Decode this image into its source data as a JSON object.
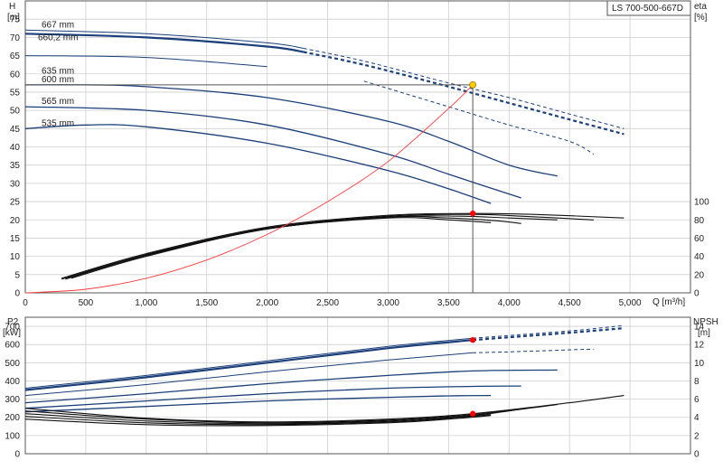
{
  "chart_data": [
    {
      "type": "line",
      "title": "LS 700-500-667D",
      "xlabel": "Q [m³/h]",
      "ylabel_left": "H",
      "ylabel_left_unit": "[m]",
      "ylabel_right": "eta",
      "ylabel_right_unit": "[%]",
      "xlim": [
        0,
        5500
      ],
      "ylim_left": [
        0,
        80
      ],
      "ylim_right": [
        0,
        100
      ],
      "grid": true,
      "x_ticks": [
        0,
        500,
        1000,
        1500,
        2000,
        2500,
        3000,
        3500,
        4000,
        4500,
        5000
      ],
      "x_tick_labels": [
        "0",
        "500",
        "1,000",
        "1,500",
        "2,000",
        "2,500",
        "3,000",
        "3,500",
        "4,000",
        "4,500",
        "5,000"
      ],
      "y_left_ticks": [
        0,
        5,
        10,
        15,
        20,
        25,
        30,
        35,
        40,
        45,
        50,
        55,
        60,
        65,
        70,
        75
      ],
      "y_right_ticks": [
        0,
        20,
        40,
        60,
        80,
        100
      ],
      "head_curves": [
        {
          "name": "667 mm",
          "label": true,
          "style": "solid-dashed",
          "x": [
            0,
            1000,
            2000,
            2300,
            2800,
            3500,
            4000,
            4500,
            4950
          ],
          "y": [
            72,
            71,
            68.5,
            67,
            63.5,
            57.5,
            53.5,
            49,
            45
          ]
        },
        {
          "name": "660,2 mm",
          "label": true,
          "style": "solid-dashed-bold",
          "x": [
            0,
            1000,
            2000,
            2300,
            2800,
            3500,
            4000,
            4500,
            4950
          ],
          "y": [
            71,
            70,
            67.5,
            66,
            62.5,
            56.5,
            52,
            47.5,
            43.5
          ]
        },
        {
          "name": "635 mm",
          "label": true,
          "style": "solid-dashed",
          "x": [
            0,
            1000,
            2000,
            2800,
            3500,
            4000,
            4500,
            4700
          ],
          "y": [
            65,
            64.5,
            62,
            58,
            51,
            46,
            41.5,
            38
          ]
        },
        {
          "name": "600 mm",
          "label": true,
          "style": "solid",
          "x": [
            0,
            500,
            1000,
            2000,
            3000,
            3500,
            4000,
            4400
          ],
          "y": [
            57,
            57,
            56.5,
            53.5,
            47,
            41.5,
            35,
            32
          ]
        },
        {
          "name": "565 mm",
          "label": true,
          "style": "solid",
          "x": [
            0,
            1000,
            2000,
            3000,
            3500,
            4100
          ],
          "y": [
            51,
            50,
            46,
            38,
            32.5,
            26
          ]
        },
        {
          "name": "535 mm",
          "label": true,
          "style": "solid",
          "x": [
            0,
            500,
            1000,
            2000,
            3000,
            3500,
            3850
          ],
          "y": [
            45,
            46,
            45.5,
            41,
            33.5,
            28.5,
            24.5
          ]
        }
      ],
      "eta_curves": [
        {
          "x": [
            300,
            1000,
            2000,
            3000,
            3700,
            4200,
            4950
          ],
          "y": [
            16,
            43,
            72,
            85,
            87,
            86,
            82
          ]
        },
        {
          "x": [
            300,
            1000,
            2000,
            3000,
            3700,
            4100,
            4700
          ],
          "y": [
            15,
            42,
            71,
            84,
            86,
            84,
            80
          ]
        },
        {
          "x": [
            330,
            1000,
            2000,
            3000,
            3600,
            4000,
            4400
          ],
          "y": [
            15,
            41,
            70,
            83,
            84,
            82,
            80
          ]
        },
        {
          "x": [
            350,
            1000,
            2000,
            3000,
            3500,
            3900,
            4100
          ],
          "y": [
            16,
            41,
            70,
            83,
            82,
            79,
            76
          ]
        },
        {
          "x": [
            380,
            1000,
            2000,
            3000,
            3500,
            3850
          ],
          "y": [
            16,
            40,
            70,
            82,
            80,
            77
          ]
        }
      ],
      "system_curve": {
        "x": [
          0,
          500,
          1000,
          1500,
          2000,
          2500,
          3000,
          3500,
          3700
        ],
        "y": [
          0,
          1,
          4,
          9,
          16,
          25,
          36,
          50.5,
          57
        ]
      },
      "duty_point": {
        "q": 3700,
        "h": 57,
        "eta": 87
      }
    },
    {
      "type": "line",
      "title": "",
      "xlabel": "",
      "ylabel_left": "P2",
      "ylabel_left_unit": "[kW]",
      "ylabel_right": "NPSH",
      "ylabel_right_unit": "[m]",
      "xlim": [
        0,
        5500
      ],
      "ylim_left": [
        0,
        750
      ],
      "ylim_right": [
        0,
        15
      ],
      "grid": true,
      "y_left_ticks": [
        0,
        100,
        200,
        300,
        400,
        500,
        600,
        700
      ],
      "y_right_ticks": [
        0,
        2,
        4,
        6,
        8,
        10,
        12,
        14
      ],
      "power_curves": [
        {
          "name": "667 mm",
          "style": "solid-dashed",
          "x": [
            0,
            1000,
            2000,
            3000,
            3700,
            4500,
            4950
          ],
          "y": [
            360,
            430,
            510,
            590,
            635,
            675,
            705
          ]
        },
        {
          "name": "660,2 mm",
          "style": "solid-dashed-bold",
          "x": [
            0,
            1000,
            2000,
            3000,
            3700,
            4500,
            4950
          ],
          "y": [
            350,
            420,
            500,
            580,
            625,
            665,
            690
          ]
        },
        {
          "name": "635 mm",
          "style": "solid-dashed",
          "x": [
            0,
            1000,
            2000,
            3000,
            3700,
            4000,
            4700
          ],
          "y": [
            320,
            380,
            450,
            515,
            555,
            560,
            575
          ]
        },
        {
          "name": "600 mm",
          "style": "solid",
          "x": [
            0,
            1000,
            2000,
            3000,
            3700,
            4400
          ],
          "y": [
            280,
            330,
            385,
            430,
            455,
            460
          ]
        },
        {
          "name": "565 mm",
          "style": "solid",
          "x": [
            0,
            1000,
            2000,
            3000,
            3700,
            4100
          ],
          "y": [
            250,
            290,
            330,
            360,
            370,
            372
          ]
        },
        {
          "name": "535 mm",
          "style": "solid",
          "x": [
            0,
            1000,
            2000,
            3000,
            3500,
            3850
          ],
          "y": [
            230,
            260,
            290,
            310,
            318,
            320
          ]
        }
      ],
      "npsh_curves": [
        {
          "x": [
            0,
            1000,
            2000,
            3000,
            3700,
            4500,
            4950
          ],
          "y": [
            5,
            3.9,
            3.5,
            3.8,
            4.4,
            5.6,
            6.4
          ]
        },
        {
          "x": [
            0,
            1000,
            2000,
            3000,
            3700,
            4400
          ],
          "y": [
            4.7,
            3.8,
            3.4,
            3.7,
            4.3,
            5.4
          ]
        },
        {
          "x": [
            0,
            1000,
            2000,
            3000,
            3700,
            4100
          ],
          "y": [
            4.4,
            3.6,
            3.3,
            3.6,
            4.2,
            4.9
          ]
        },
        {
          "x": [
            0,
            1000,
            2000,
            3000,
            3500,
            3850
          ],
          "y": [
            4.1,
            3.4,
            3.2,
            3.5,
            3.9,
            4.3
          ]
        },
        {
          "x": [
            0,
            1000,
            2000,
            3000,
            3500,
            3850
          ],
          "y": [
            3.8,
            3.2,
            3.1,
            3.4,
            3.8,
            4.2
          ]
        }
      ],
      "duty_point": {
        "q": 3700,
        "p2": 625,
        "npsh": 4.4
      }
    }
  ],
  "colors": {
    "curve_blue": "#1b3f7a",
    "eta_npsh": "#111111",
    "system_curve": "#ff3a3a",
    "duty_point": "#ffcc00",
    "duty_point_red": "#ff0000",
    "grid": "#cfcfcf"
  }
}
